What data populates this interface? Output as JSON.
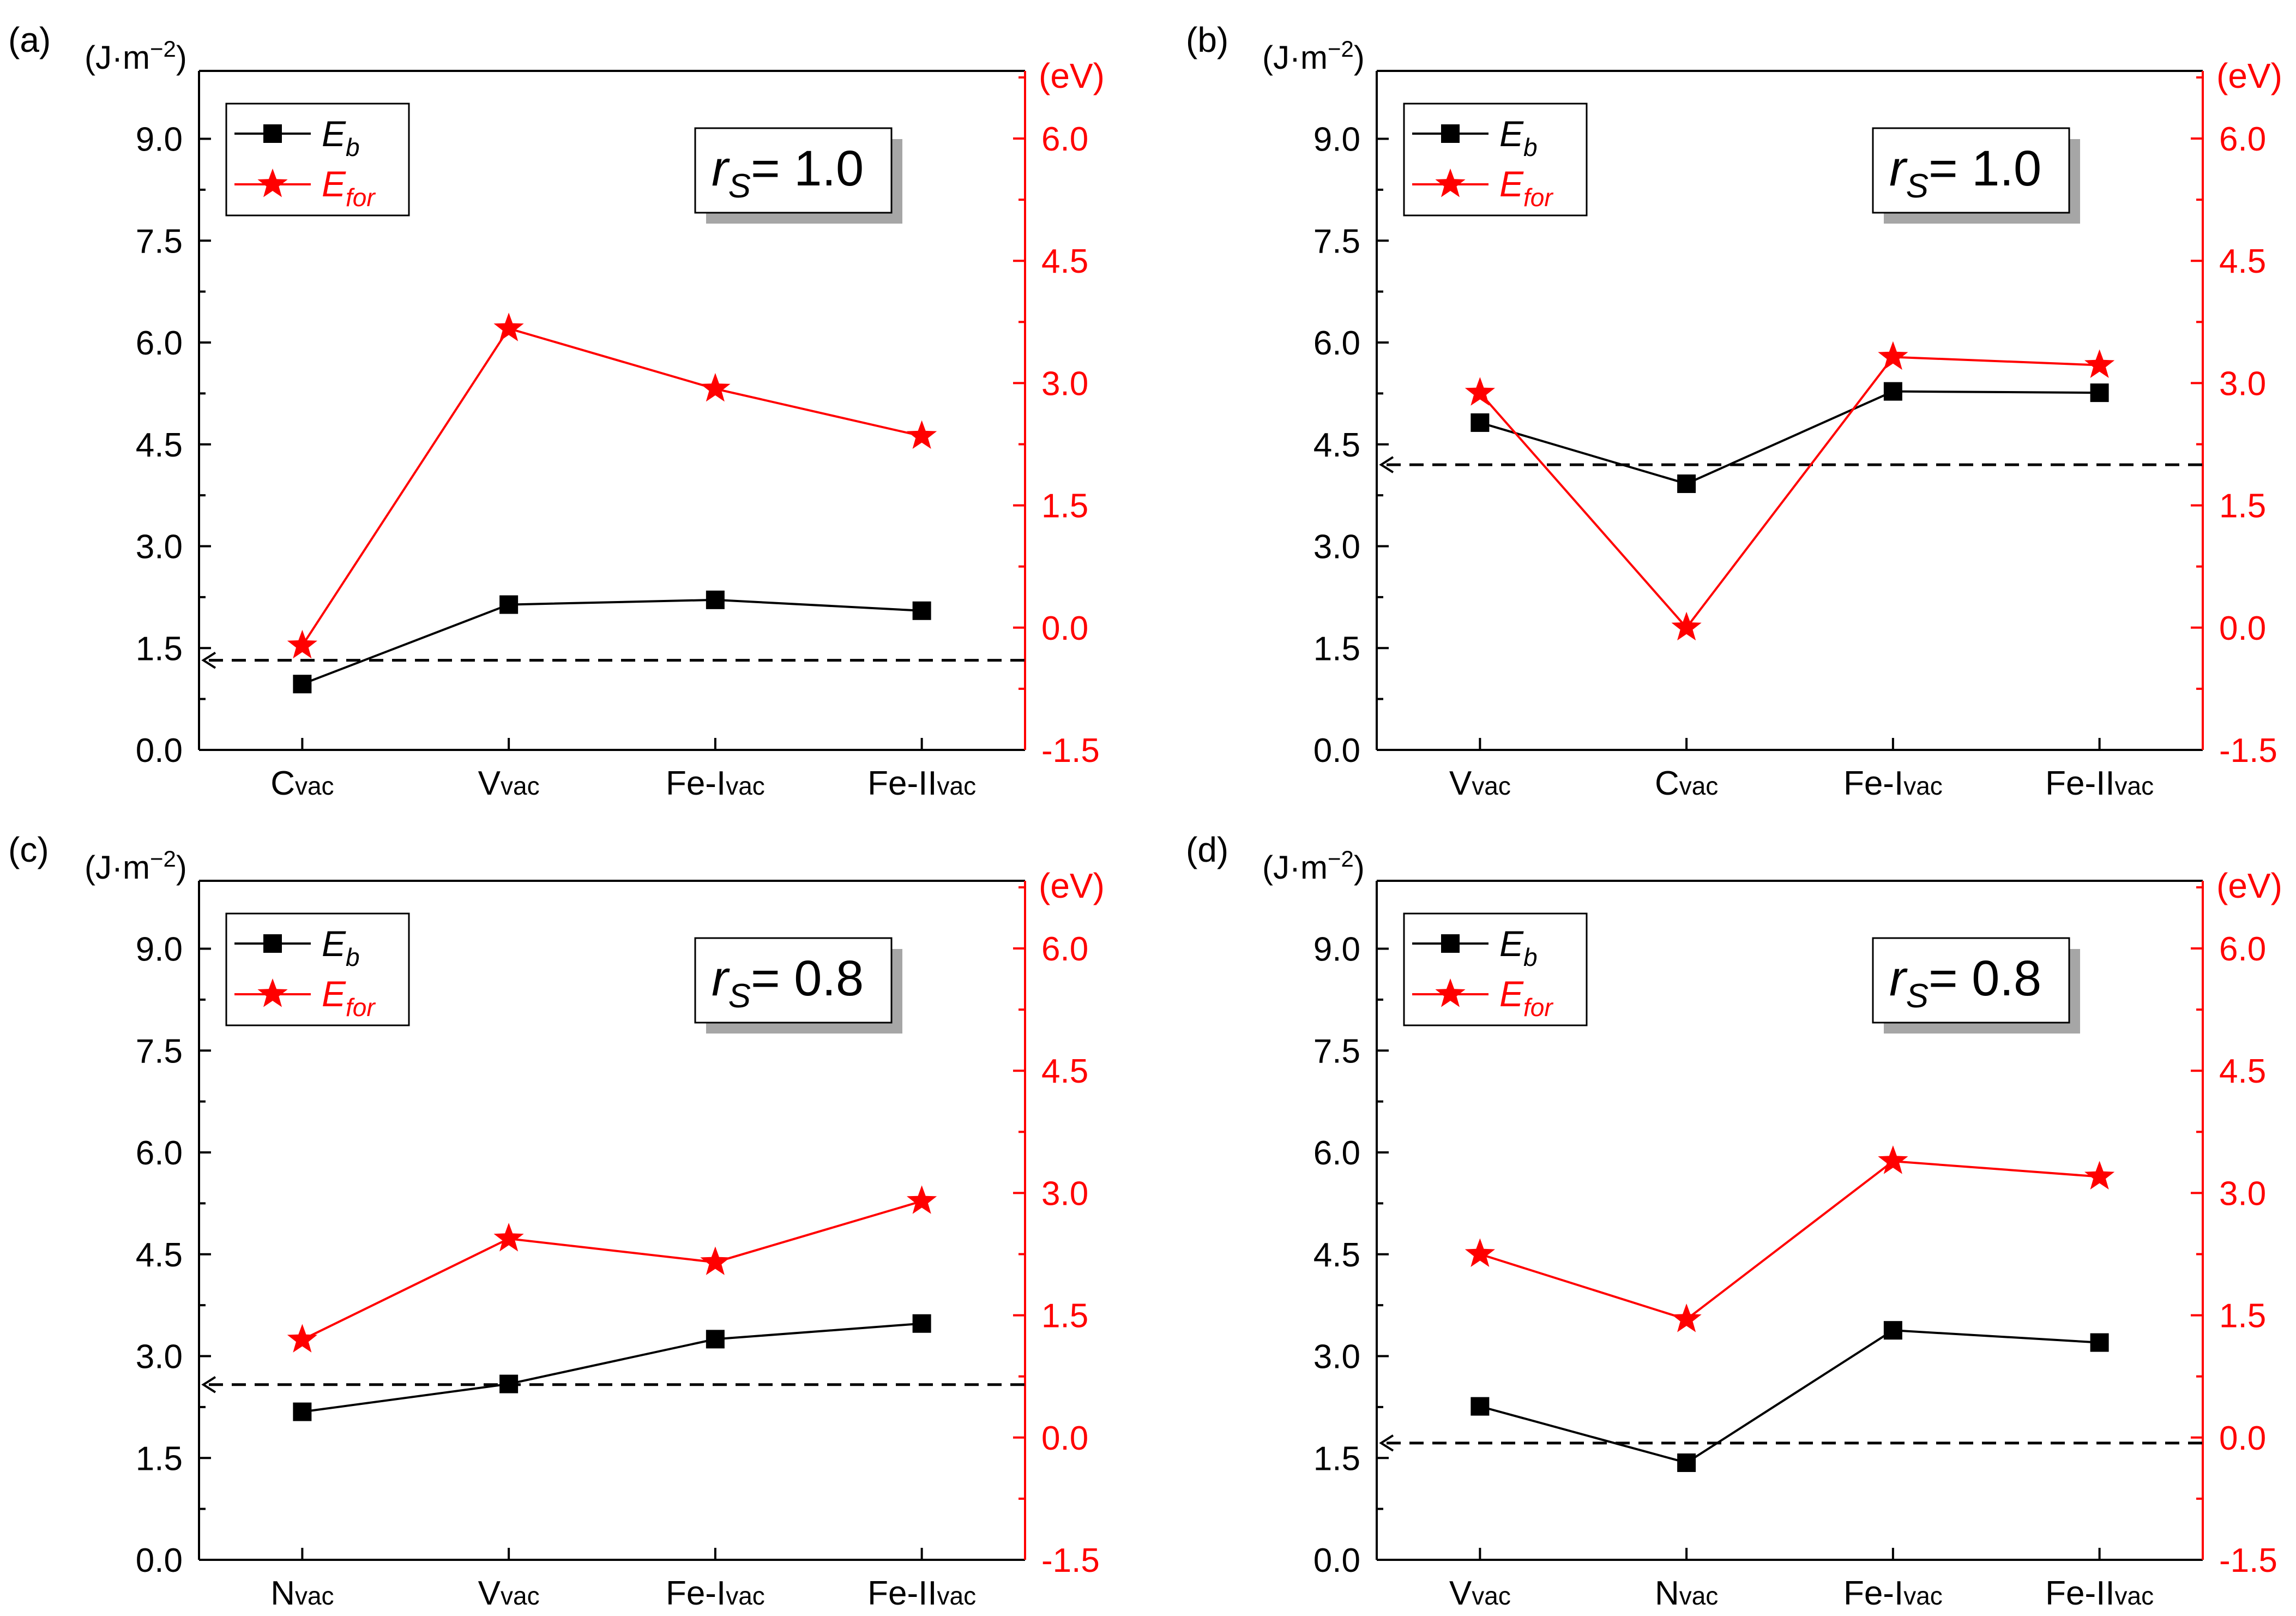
{
  "figure": {
    "colors": {
      "eb": "#000000",
      "efor": "#ff0000",
      "axis_left": "#000000",
      "axis_right": "#ff0000",
      "shadow": "#a6a6a6"
    },
    "legend": {
      "eb_main": "E",
      "eb_sub": "b",
      "efor_main": "E",
      "efor_sub": "for"
    },
    "left_unit": {
      "prefix": "(J·m",
      "sup": "−2",
      "suffix": ")"
    },
    "right_unit": "(eV)"
  },
  "chart_data": [
    {
      "type": "line",
      "panel_label": "(a)",
      "categories": [
        {
          "main": "C",
          "sub": "vac"
        },
        {
          "main": "V",
          "sub": "vac"
        },
        {
          "main": "Fe-I",
          "sub": "vac"
        },
        {
          "main": "Fe-II",
          "sub": "vac"
        }
      ],
      "annotation": {
        "r": "r",
        "sub": "S",
        "value": "= 1.0"
      },
      "series": [
        {
          "name": "Eb",
          "axis": "left",
          "marker": "square",
          "values": [
            0.97,
            2.14,
            2.21,
            2.05
          ]
        },
        {
          "name": "Efor",
          "axis": "right",
          "marker": "star",
          "values": [
            -0.22,
            3.67,
            2.93,
            2.35
          ]
        }
      ],
      "reference_line": {
        "axis": "left",
        "value": 1.32,
        "style": "dashed",
        "arrow": "left"
      },
      "y_left": {
        "range": [
          0,
          10
        ],
        "ticks": [
          "0.0",
          "1.5",
          "3.0",
          "4.5",
          "6.0",
          "7.5",
          "9.0"
        ]
      },
      "y_right": {
        "range": [
          -1.5,
          6.83
        ],
        "ticks": [
          "-1.5",
          "0.0",
          "1.5",
          "3.0",
          "4.5",
          "6.0"
        ]
      }
    },
    {
      "type": "line",
      "panel_label": "(b)",
      "categories": [
        {
          "main": "V",
          "sub": "vac"
        },
        {
          "main": "C",
          "sub": "vac"
        },
        {
          "main": "Fe-I",
          "sub": "vac"
        },
        {
          "main": "Fe-II",
          "sub": "vac"
        }
      ],
      "annotation": {
        "r": "r",
        "sub": "S",
        "value": "= 1.0"
      },
      "series": [
        {
          "name": "Eb",
          "axis": "left",
          "marker": "square",
          "values": [
            4.82,
            3.92,
            5.28,
            5.26
          ]
        },
        {
          "name": "Efor",
          "axis": "right",
          "marker": "star",
          "values": [
            2.88,
            0.0,
            3.32,
            3.22
          ]
        }
      ],
      "reference_line": {
        "axis": "left",
        "value": 4.2,
        "style": "dashed",
        "arrow": "left"
      },
      "y_left": {
        "range": [
          0,
          10
        ],
        "ticks": [
          "0.0",
          "1.5",
          "3.0",
          "4.5",
          "6.0",
          "7.5",
          "9.0"
        ]
      },
      "y_right": {
        "range": [
          -1.5,
          6.83
        ],
        "ticks": [
          "-1.5",
          "0.0",
          "1.5",
          "3.0",
          "4.5",
          "6.0"
        ]
      }
    },
    {
      "type": "line",
      "panel_label": "(c)",
      "categories": [
        {
          "main": "N",
          "sub": "vac"
        },
        {
          "main": "V",
          "sub": "vac"
        },
        {
          "main": "Fe-I",
          "sub": "vac"
        },
        {
          "main": "Fe-II",
          "sub": "vac"
        }
      ],
      "annotation": {
        "r": "r",
        "sub": "S",
        "value": "= 0.8"
      },
      "series": [
        {
          "name": "Eb",
          "axis": "left",
          "marker": "square",
          "values": [
            2.18,
            2.59,
            3.25,
            3.48
          ]
        },
        {
          "name": "Efor",
          "axis": "right",
          "marker": "star",
          "values": [
            1.2,
            2.44,
            2.15,
            2.9
          ]
        }
      ],
      "reference_line": {
        "axis": "left",
        "value": 2.58,
        "style": "dashed",
        "arrow": "left"
      },
      "y_left": {
        "range": [
          0,
          10
        ],
        "ticks": [
          "0.0",
          "1.5",
          "3.0",
          "4.5",
          "6.0",
          "7.5",
          "9.0"
        ]
      },
      "y_right": {
        "range": [
          -1.5,
          6.83
        ],
        "ticks": [
          "-1.5",
          "0.0",
          "1.5",
          "3.0",
          "4.5",
          "6.0"
        ]
      }
    },
    {
      "type": "line",
      "panel_label": "(d)",
      "categories": [
        {
          "main": "V",
          "sub": "vac"
        },
        {
          "main": "N",
          "sub": "vac"
        },
        {
          "main": "Fe-I",
          "sub": "vac"
        },
        {
          "main": "Fe-II",
          "sub": "vac"
        }
      ],
      "annotation": {
        "r": "r",
        "sub": "S",
        "value": "= 0.8"
      },
      "series": [
        {
          "name": "Eb",
          "axis": "left",
          "marker": "square",
          "values": [
            2.26,
            1.43,
            3.38,
            3.2
          ]
        },
        {
          "name": "Efor",
          "axis": "right",
          "marker": "star",
          "values": [
            2.25,
            1.45,
            3.39,
            3.2
          ]
        }
      ],
      "reference_line": {
        "axis": "left",
        "value": 1.72,
        "style": "dashed",
        "arrow": "left"
      },
      "y_left": {
        "range": [
          0,
          10
        ],
        "ticks": [
          "0.0",
          "1.5",
          "3.0",
          "4.5",
          "6.0",
          "7.5",
          "9.0"
        ]
      },
      "y_right": {
        "range": [
          -1.5,
          6.83
        ],
        "ticks": [
          "-1.5",
          "0.0",
          "1.5",
          "3.0",
          "4.5",
          "6.0"
        ]
      }
    }
  ]
}
